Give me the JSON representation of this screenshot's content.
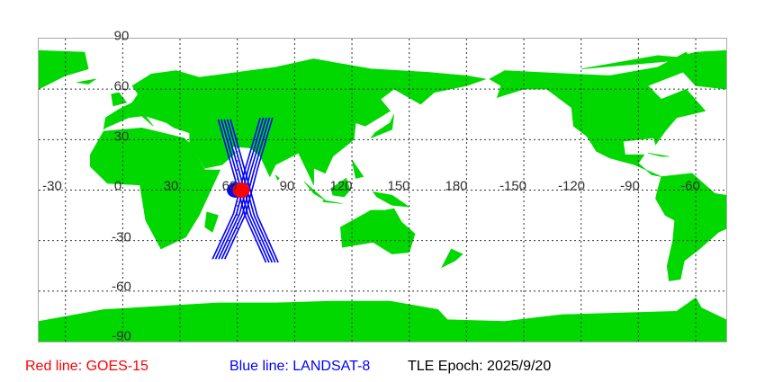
{
  "map": {
    "lon_labels": [
      "-30",
      "0",
      "30",
      "60",
      "90",
      "120",
      "150",
      "180",
      "-150",
      "-120",
      "-90",
      "-60"
    ],
    "lat_labels": [
      "90",
      "60",
      "30",
      "-30",
      "-60",
      "-90"
    ],
    "land_color": "#00d800",
    "grid": true
  },
  "satellites": [
    {
      "label": "Red line: GOES-15",
      "color": "#ff0000",
      "marker_lon": 62,
      "marker_lat": 0
    },
    {
      "label": "Blue line: LANDSAT-8",
      "color": "#0000ff",
      "marker_lon": 59,
      "marker_lat": 0
    }
  ],
  "epoch": "TLE Epoch: 2025/9/20"
}
